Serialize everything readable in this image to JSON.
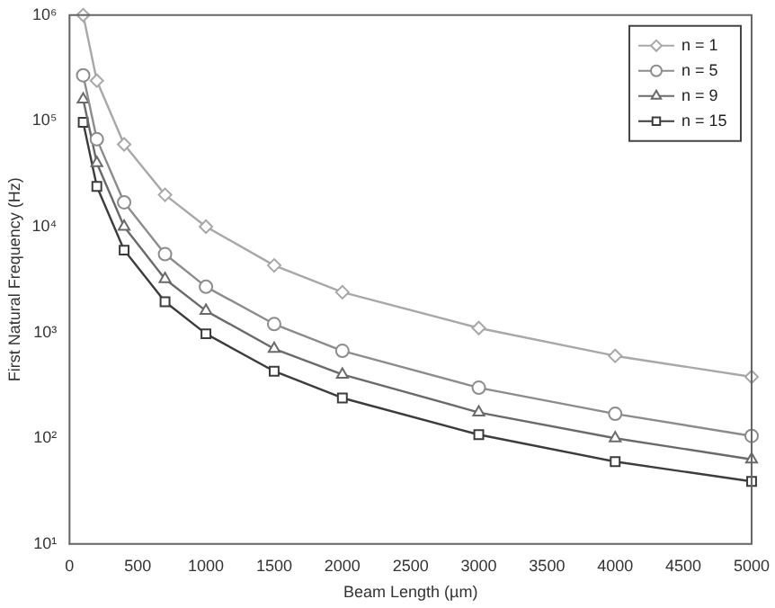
{
  "chart_data": {
    "type": "line",
    "xlabel": "Beam Length (µm)",
    "ylabel": "First Natural Frequency (Hz)",
    "x": [
      100,
      200,
      400,
      700,
      1000,
      1500,
      2000,
      3000,
      4000,
      5000
    ],
    "series": [
      {
        "name": "n = 1",
        "color": "#a8a8a8",
        "marker": "diamond",
        "values": [
          1000000,
          240000,
          60000,
          20000,
          10000,
          4300,
          2400,
          1100,
          600,
          380
        ]
      },
      {
        "name": "n = 5",
        "color": "#8c8c8c",
        "marker": "circle",
        "values": [
          270000,
          67000,
          17000,
          5500,
          2700,
          1200,
          670,
          300,
          170,
          105
        ]
      },
      {
        "name": "n = 9",
        "color": "#6a6a6a",
        "marker": "triangle",
        "values": [
          160000,
          40000,
          10000,
          3200,
          1600,
          700,
          400,
          175,
          100,
          63
        ]
      },
      {
        "name": "n = 15",
        "color": "#3c3c3c",
        "marker": "square",
        "values": [
          97000,
          24000,
          6000,
          1950,
          970,
          430,
          240,
          108,
          60,
          39
        ]
      }
    ],
    "log": "y",
    "xlim": [
      0,
      5000
    ],
    "xticks": [
      0,
      500,
      1000,
      1500,
      2000,
      2500,
      3000,
      3500,
      4000,
      4500,
      5000
    ],
    "ylim": [
      10,
      1000000
    ],
    "yticks": [
      {
        "value": 10,
        "label": "10¹"
      },
      {
        "value": 100,
        "label": "10²"
      },
      {
        "value": 1000,
        "label": "10³"
      },
      {
        "value": 10000,
        "label": "10⁴"
      },
      {
        "value": 100000,
        "label": "10⁵"
      },
      {
        "value": 1000000,
        "label": "10⁶"
      }
    ],
    "grid": false,
    "legend": "top right",
    "line_style": "solid"
  }
}
